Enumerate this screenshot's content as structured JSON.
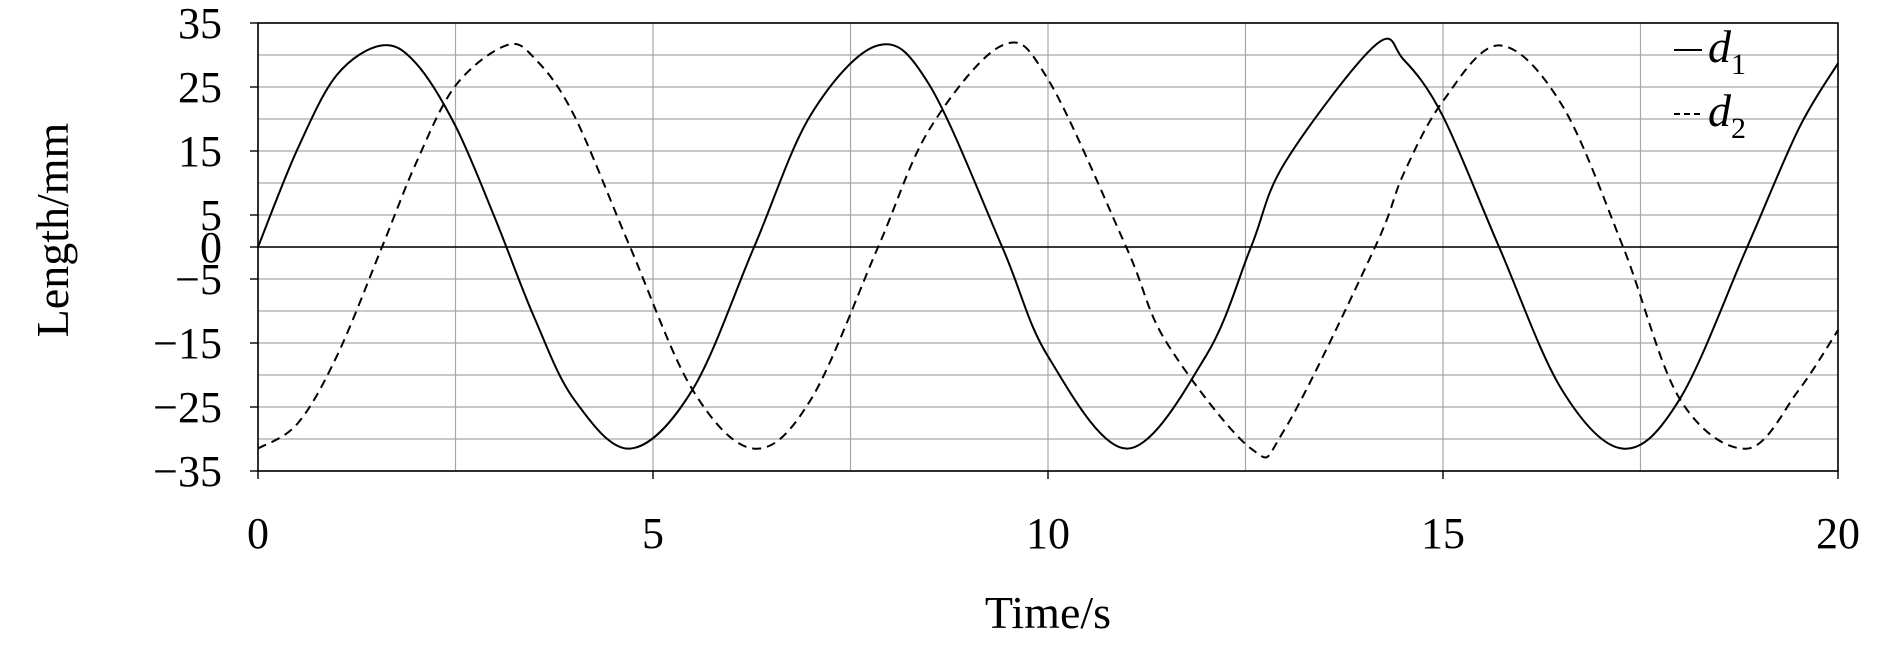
{
  "chart_data": {
    "type": "line",
    "title": "",
    "xlabel": "Time/s",
    "ylabel": "Length/mm",
    "xlim": [
      0,
      20
    ],
    "ylim": [
      -35,
      35
    ],
    "x_ticks": [
      0,
      5,
      10,
      15,
      20
    ],
    "x_tick_labels": [
      "0",
      "5",
      "10",
      "15",
      "20"
    ],
    "y_ticks": [
      35,
      25,
      15,
      5,
      0,
      -5,
      -15,
      -25,
      -35
    ],
    "y_tick_labels": [
      "35",
      "25",
      "15",
      "5",
      "0",
      "−5",
      "−15",
      "−25",
      "−35"
    ],
    "grid": true,
    "legend_position": "top-right",
    "legend": [
      {
        "symbol": "d",
        "subscript": "1",
        "style": "solid"
      },
      {
        "symbol": "d",
        "subscript": "2",
        "style": "dashed"
      }
    ],
    "series": [
      {
        "style": "solid",
        "x": [
          0,
          0.5,
          1.0,
          1.57,
          2.0,
          2.5,
          3.0,
          3.5,
          4.0,
          4.71,
          5.5,
          6.28,
          7.0,
          7.85,
          8.5,
          9.42,
          10.0,
          11.0,
          12.0,
          12.57,
          13.0,
          14.14,
          14.5,
          15.0,
          15.71,
          16.5,
          17.28,
          18.0,
          18.85,
          19.5,
          20.0
        ],
        "y": [
          0,
          15.3,
          26.9,
          31.5,
          28.7,
          18.9,
          4.5,
          -11.1,
          -23.8,
          -31.5,
          -22.3,
          0,
          20.7,
          31.5,
          25.3,
          0,
          -17.1,
          -31.5,
          -17.0,
          0,
          13.2,
          31.5,
          29.3,
          20.4,
          0,
          -22.2,
          -31.5,
          -23.7,
          0,
          18.4,
          28.7
        ]
      },
      {
        "style": "dashed",
        "x": [
          0,
          0.5,
          1.0,
          1.57,
          2.0,
          2.5,
          3.14,
          3.5,
          4.0,
          4.71,
          5.5,
          6.28,
          7.0,
          7.85,
          8.5,
          9.42,
          10.0,
          10.99,
          11.5,
          12.57,
          13.0,
          14.14,
          14.5,
          15.0,
          15.71,
          16.5,
          17.28,
          18.0,
          18.85,
          19.5,
          20.0
        ],
        "y": [
          -31.5,
          -27.6,
          -17.0,
          0,
          13.1,
          25.2,
          31.5,
          29.5,
          20.6,
          0,
          -22.3,
          -31.5,
          -23.8,
          0,
          18.4,
          31.5,
          26.2,
          0,
          -14.9,
          -31.5,
          -28.4,
          0,
          11.4,
          22.8,
          31.5,
          22.3,
          0,
          -23.8,
          -31.5,
          -22.4,
          -13.0
        ]
      }
    ]
  }
}
